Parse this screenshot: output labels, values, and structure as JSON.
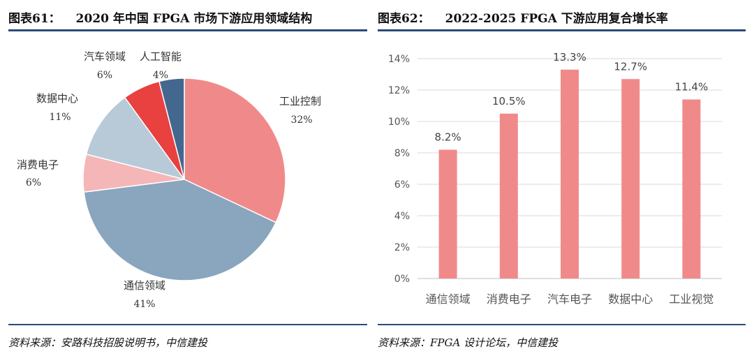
{
  "left_panel": {
    "title_prefix": "图表61：",
    "title": "2020 年中国 FPGA 市场下游应用领域结构",
    "source": "资料来源：安路科技招股说明书，中信建投"
  },
  "right_panel": {
    "title_prefix": "图表62：",
    "title": "2022-2025 FPGA 下游应用复合增长率",
    "source": "资料来源：FPGA 设计论坛，中信建投"
  },
  "chart_data": [
    {
      "type": "pie",
      "title": "2020 年中国 FPGA 市场下游应用领域结构",
      "start": "12 o'clock, clockwise",
      "slices": [
        {
          "label": "工业控制",
          "value": 32,
          "value_text": "32%",
          "color": "#f08a8a"
        },
        {
          "label": "通信领域",
          "value": 41,
          "value_text": "41%",
          "color": "#8aa5be"
        },
        {
          "label": "消费电子",
          "value": 6,
          "value_text": "6%",
          "color": "#f4b6b6"
        },
        {
          "label": "数据中心",
          "value": 11,
          "value_text": "11%",
          "color": "#b8cad8"
        },
        {
          "label": "汽车领域",
          "value": 6,
          "value_text": "6%",
          "color": "#e8413f"
        },
        {
          "label": "人工智能",
          "value": 4,
          "value_text": "4%",
          "color": "#44678f"
        }
      ]
    },
    {
      "type": "bar",
      "title": "2022-2025 FPGA 下游应用复合增长率",
      "categories": [
        "通信领域",
        "消费电子",
        "汽车电子",
        "数据中心",
        "工业视觉"
      ],
      "values": [
        8.2,
        10.5,
        13.3,
        12.7,
        11.4
      ],
      "value_labels": [
        "8.2%",
        "10.5%",
        "13.3%",
        "12.7%",
        "11.4%"
      ],
      "ylim": [
        0,
        14
      ],
      "yticks": [
        "0%",
        "2%",
        "4%",
        "6%",
        "8%",
        "10%",
        "12%",
        "14%"
      ],
      "grid": true,
      "bar_color": "#f08a8a"
    }
  ]
}
